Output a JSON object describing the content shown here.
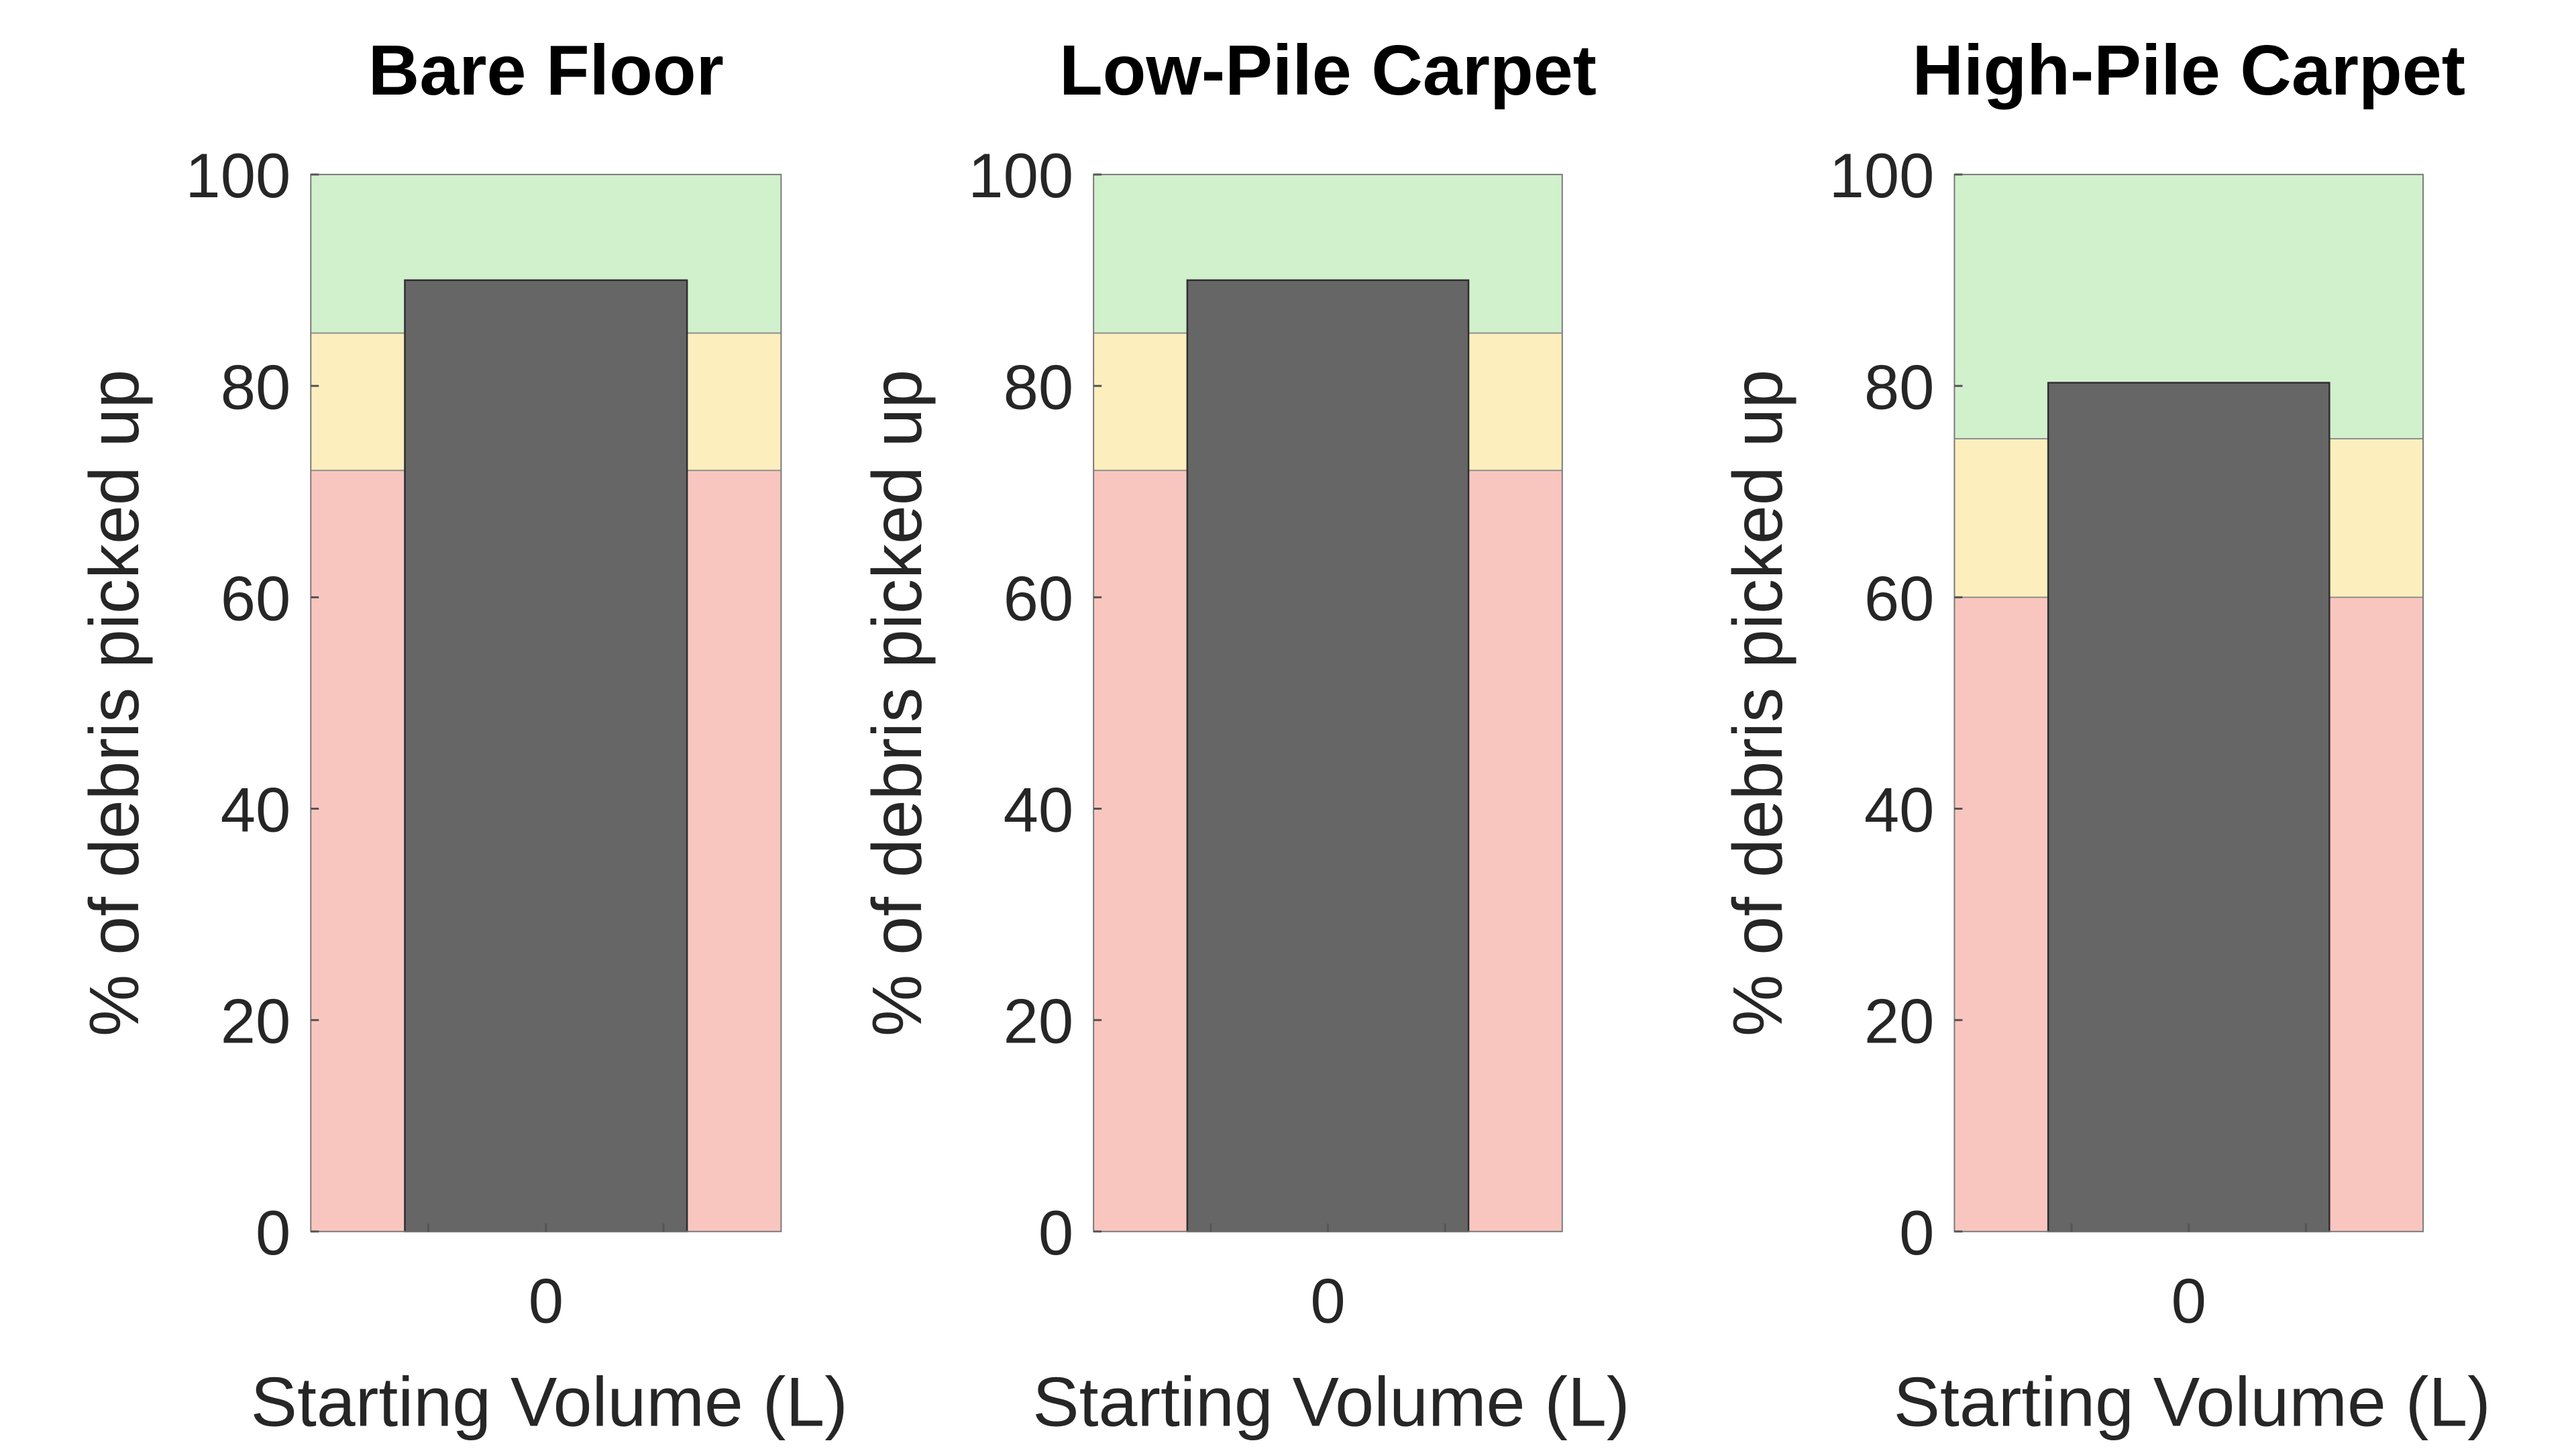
{
  "chart_data": [
    {
      "type": "bar",
      "title": "Bare Floor",
      "xlabel": "Starting Volume (L)",
      "ylabel": "% of debris picked up",
      "categories": [
        "0"
      ],
      "values": [
        90
      ],
      "ylim": [
        0,
        100
      ],
      "yticks": [
        "0",
        "20",
        "40",
        "60",
        "80",
        "100"
      ],
      "bands": [
        {
          "from": 0,
          "to": 72,
          "color": "#f9c6bf"
        },
        {
          "from": 72,
          "to": 85,
          "color": "#fdefbd"
        },
        {
          "from": 85,
          "to": 100,
          "color": "#d1f0cc"
        }
      ],
      "bar_color": "#666666",
      "grid": false
    },
    {
      "type": "bar",
      "title": "Low-Pile Carpet",
      "xlabel": "Starting Volume (L)",
      "ylabel": "% of debris picked up",
      "categories": [
        "0"
      ],
      "values": [
        90
      ],
      "ylim": [
        0,
        100
      ],
      "yticks": [
        "0",
        "20",
        "40",
        "60",
        "80",
        "100"
      ],
      "bands": [
        {
          "from": 0,
          "to": 72,
          "color": "#f9c6bf"
        },
        {
          "from": 72,
          "to": 85,
          "color": "#fdefbd"
        },
        {
          "from": 85,
          "to": 100,
          "color": "#d1f0cc"
        }
      ],
      "bar_color": "#666666",
      "grid": false
    },
    {
      "type": "bar",
      "title": "High-Pile Carpet",
      "xlabel": "Starting Volume (L)",
      "ylabel": "% of debris picked up",
      "categories": [
        "0"
      ],
      "values": [
        80.3
      ],
      "ylim": [
        0,
        100
      ],
      "yticks": [
        "0",
        "20",
        "40",
        "60",
        "80",
        "100"
      ],
      "bands": [
        {
          "from": 0,
          "to": 60,
          "color": "#f9c6bf"
        },
        {
          "from": 60,
          "to": 75,
          "color": "#fdefbd"
        },
        {
          "from": 75,
          "to": 100,
          "color": "#d1f0cc"
        }
      ],
      "bar_color": "#666666",
      "grid": false
    }
  ]
}
